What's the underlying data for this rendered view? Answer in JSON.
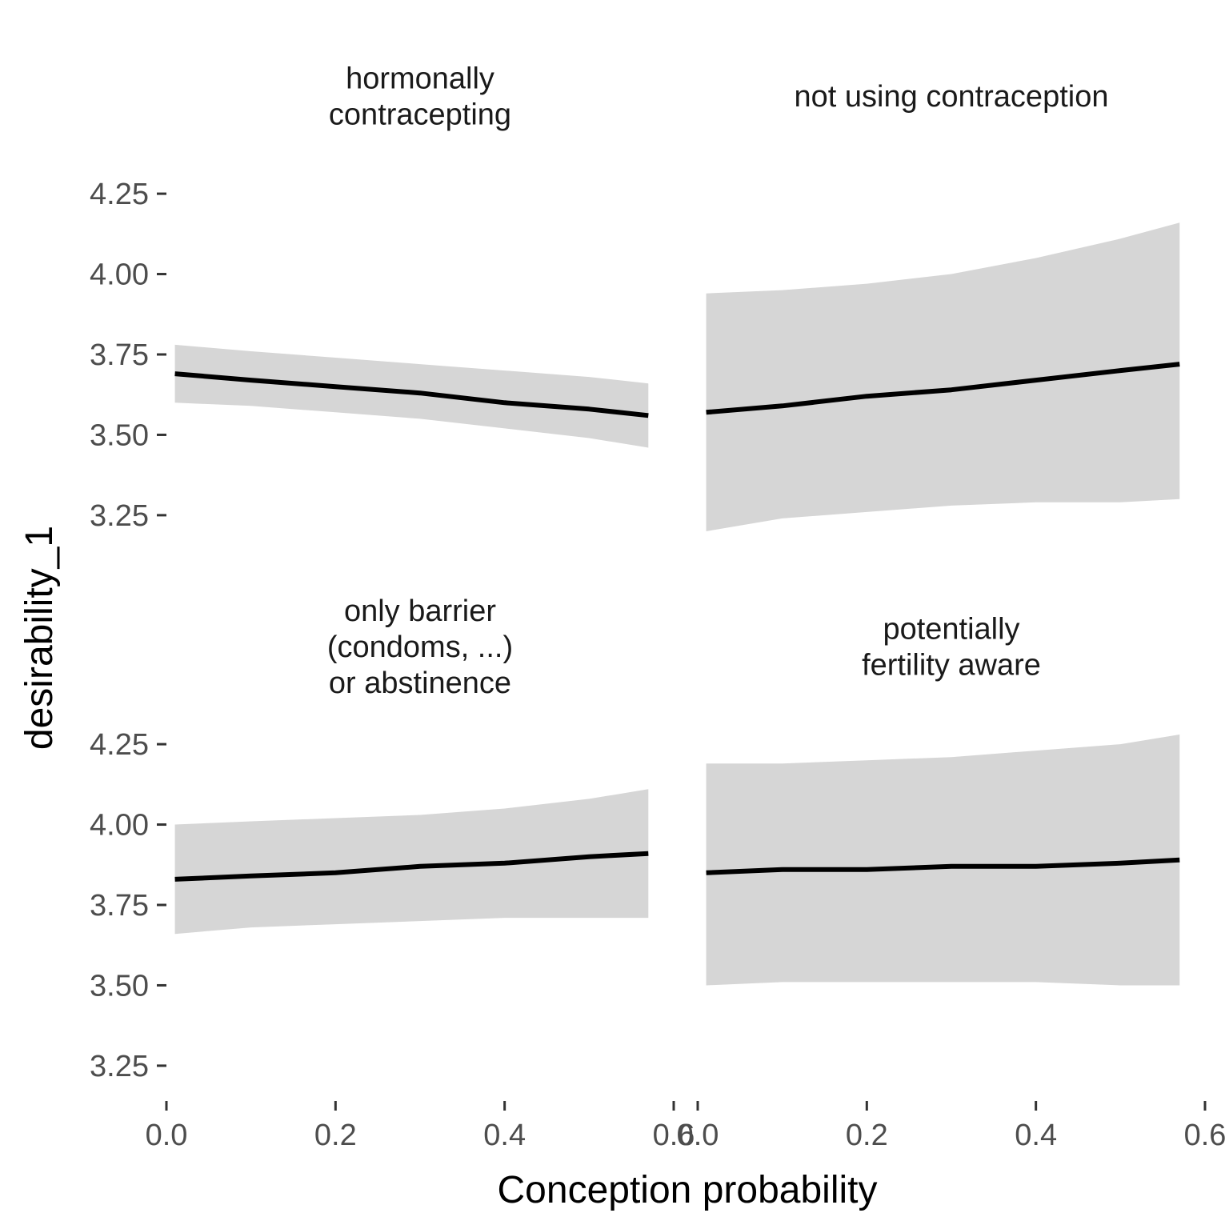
{
  "chart_data": {
    "type": "line",
    "xlabel": "Conception probability",
    "ylabel": "desirability_1",
    "xlim": [
      0,
      0.6
    ],
    "ylim": [
      3.2,
      4.3
    ],
    "x_ticks": [
      {
        "value": 0.0,
        "label": "0.0"
      },
      {
        "value": 0.2,
        "label": "0.2"
      },
      {
        "value": 0.4,
        "label": "0.4"
      },
      {
        "value": 0.6,
        "label": "0.6"
      }
    ],
    "y_ticks": [
      {
        "value": 3.25,
        "label": "3.25"
      },
      {
        "value": 3.5,
        "label": "3.50"
      },
      {
        "value": 3.75,
        "label": "3.75"
      },
      {
        "value": 4.0,
        "label": "4.00"
      },
      {
        "value": 4.25,
        "label": "4.25"
      }
    ],
    "grid": false,
    "colors": {
      "line": "#000000",
      "ribbon": "#d6d6d6"
    },
    "panels": [
      {
        "title_lines": [
          "hormonally",
          "contracepting"
        ],
        "x": [
          0.01,
          0.1,
          0.2,
          0.3,
          0.4,
          0.5,
          0.57
        ],
        "fit": [
          3.69,
          3.67,
          3.65,
          3.63,
          3.6,
          3.58,
          3.56
        ],
        "lower": [
          3.6,
          3.59,
          3.57,
          3.55,
          3.52,
          3.49,
          3.46
        ],
        "upper": [
          3.78,
          3.76,
          3.74,
          3.72,
          3.7,
          3.68,
          3.66
        ]
      },
      {
        "title_lines": [
          "not using contraception"
        ],
        "x": [
          0.01,
          0.1,
          0.2,
          0.3,
          0.4,
          0.5,
          0.57
        ],
        "fit": [
          3.57,
          3.59,
          3.62,
          3.64,
          3.67,
          3.7,
          3.72
        ],
        "lower": [
          3.2,
          3.24,
          3.26,
          3.28,
          3.29,
          3.29,
          3.3
        ],
        "upper": [
          3.94,
          3.95,
          3.97,
          4.0,
          4.05,
          4.11,
          4.16
        ]
      },
      {
        "title_lines": [
          "only barrier",
          "(condoms, ...)",
          "or abstinence"
        ],
        "x": [
          0.01,
          0.1,
          0.2,
          0.3,
          0.4,
          0.5,
          0.57
        ],
        "fit": [
          3.83,
          3.84,
          3.85,
          3.87,
          3.88,
          3.9,
          3.91
        ],
        "lower": [
          3.66,
          3.68,
          3.69,
          3.7,
          3.71,
          3.71,
          3.71
        ],
        "upper": [
          4.0,
          4.01,
          4.02,
          4.03,
          4.05,
          4.08,
          4.11
        ]
      },
      {
        "title_lines": [
          "potentially",
          "fertility aware"
        ],
        "x": [
          0.01,
          0.1,
          0.2,
          0.3,
          0.4,
          0.5,
          0.57
        ],
        "fit": [
          3.85,
          3.86,
          3.86,
          3.87,
          3.87,
          3.88,
          3.89
        ],
        "lower": [
          3.5,
          3.51,
          3.51,
          3.51,
          3.51,
          3.5,
          3.5
        ],
        "upper": [
          4.19,
          4.19,
          4.2,
          4.21,
          4.23,
          4.25,
          4.28
        ]
      }
    ]
  }
}
